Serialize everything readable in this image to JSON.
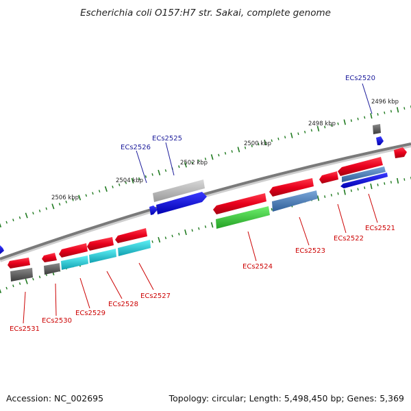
{
  "title": "Escherichia coli O157:H7 str. Sakai, complete genome",
  "footer": {
    "accession": "Accession: NC_002695",
    "summary": "Topology: circular; Length: 5,498,450 bp; Genes: 5,369"
  },
  "scale_labels": [
    "2496 kbp",
    "2498 kbp",
    "2500 kbp",
    "2502 kbp",
    "2504 kbp",
    "2506 kbp"
  ],
  "genes": [
    {
      "name": "ECs2520",
      "strand": "plus"
    },
    {
      "name": "ECs2521",
      "strand": "minus"
    },
    {
      "name": "ECs2522",
      "strand": "minus"
    },
    {
      "name": "ECs2523",
      "strand": "minus"
    },
    {
      "name": "ECs2524",
      "strand": "minus"
    },
    {
      "name": "ECs2525",
      "strand": "plus"
    },
    {
      "name": "ECs2526",
      "strand": "plus"
    },
    {
      "name": "ECs2527",
      "strand": "minus"
    },
    {
      "name": "ECs2528",
      "strand": "minus"
    },
    {
      "name": "ECs2529",
      "strand": "minus"
    },
    {
      "name": "ECs2530",
      "strand": "minus"
    },
    {
      "name": "ECs2531",
      "strand": "minus"
    }
  ],
  "colors": {
    "backbone": "#7a7a7a",
    "cds": "#e8001c",
    "scale_ticks": "#1f7a1f",
    "label_plus": "#1a1a9a",
    "label_minus": "#cc0000",
    "feature_blue": "#1010e0",
    "feature_steelblue": "#4a7fb8",
    "feature_cyan": "#20c8d0",
    "feature_green": "#3cc83c",
    "feature_gray": "#9a9a9a",
    "feature_darkgray": "#5a5a5a"
  }
}
